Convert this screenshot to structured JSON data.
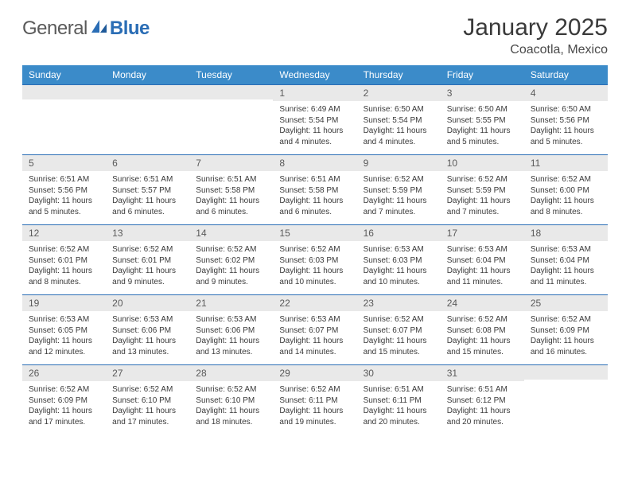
{
  "brand": {
    "part1": "General",
    "part2": "Blue"
  },
  "title": "January 2025",
  "location": "Coacotla, Mexico",
  "header_bg": "#3b8bc9",
  "border_color": "#2a6db5",
  "daynum_bg": "#e9e9e9",
  "weekdays": [
    "Sunday",
    "Monday",
    "Tuesday",
    "Wednesday",
    "Thursday",
    "Friday",
    "Saturday"
  ],
  "weeks": [
    [
      null,
      null,
      null,
      {
        "n": "1",
        "sr": "6:49 AM",
        "ss": "5:54 PM",
        "dl": "11 hours and 4 minutes."
      },
      {
        "n": "2",
        "sr": "6:50 AM",
        "ss": "5:54 PM",
        "dl": "11 hours and 4 minutes."
      },
      {
        "n": "3",
        "sr": "6:50 AM",
        "ss": "5:55 PM",
        "dl": "11 hours and 5 minutes."
      },
      {
        "n": "4",
        "sr": "6:50 AM",
        "ss": "5:56 PM",
        "dl": "11 hours and 5 minutes."
      }
    ],
    [
      {
        "n": "5",
        "sr": "6:51 AM",
        "ss": "5:56 PM",
        "dl": "11 hours and 5 minutes."
      },
      {
        "n": "6",
        "sr": "6:51 AM",
        "ss": "5:57 PM",
        "dl": "11 hours and 6 minutes."
      },
      {
        "n": "7",
        "sr": "6:51 AM",
        "ss": "5:58 PM",
        "dl": "11 hours and 6 minutes."
      },
      {
        "n": "8",
        "sr": "6:51 AM",
        "ss": "5:58 PM",
        "dl": "11 hours and 6 minutes."
      },
      {
        "n": "9",
        "sr": "6:52 AM",
        "ss": "5:59 PM",
        "dl": "11 hours and 7 minutes."
      },
      {
        "n": "10",
        "sr": "6:52 AM",
        "ss": "5:59 PM",
        "dl": "11 hours and 7 minutes."
      },
      {
        "n": "11",
        "sr": "6:52 AM",
        "ss": "6:00 PM",
        "dl": "11 hours and 8 minutes."
      }
    ],
    [
      {
        "n": "12",
        "sr": "6:52 AM",
        "ss": "6:01 PM",
        "dl": "11 hours and 8 minutes."
      },
      {
        "n": "13",
        "sr": "6:52 AM",
        "ss": "6:01 PM",
        "dl": "11 hours and 9 minutes."
      },
      {
        "n": "14",
        "sr": "6:52 AM",
        "ss": "6:02 PM",
        "dl": "11 hours and 9 minutes."
      },
      {
        "n": "15",
        "sr": "6:52 AM",
        "ss": "6:03 PM",
        "dl": "11 hours and 10 minutes."
      },
      {
        "n": "16",
        "sr": "6:53 AM",
        "ss": "6:03 PM",
        "dl": "11 hours and 10 minutes."
      },
      {
        "n": "17",
        "sr": "6:53 AM",
        "ss": "6:04 PM",
        "dl": "11 hours and 11 minutes."
      },
      {
        "n": "18",
        "sr": "6:53 AM",
        "ss": "6:04 PM",
        "dl": "11 hours and 11 minutes."
      }
    ],
    [
      {
        "n": "19",
        "sr": "6:53 AM",
        "ss": "6:05 PM",
        "dl": "11 hours and 12 minutes."
      },
      {
        "n": "20",
        "sr": "6:53 AM",
        "ss": "6:06 PM",
        "dl": "11 hours and 13 minutes."
      },
      {
        "n": "21",
        "sr": "6:53 AM",
        "ss": "6:06 PM",
        "dl": "11 hours and 13 minutes."
      },
      {
        "n": "22",
        "sr": "6:53 AM",
        "ss": "6:07 PM",
        "dl": "11 hours and 14 minutes."
      },
      {
        "n": "23",
        "sr": "6:52 AM",
        "ss": "6:07 PM",
        "dl": "11 hours and 15 minutes."
      },
      {
        "n": "24",
        "sr": "6:52 AM",
        "ss": "6:08 PM",
        "dl": "11 hours and 15 minutes."
      },
      {
        "n": "25",
        "sr": "6:52 AM",
        "ss": "6:09 PM",
        "dl": "11 hours and 16 minutes."
      }
    ],
    [
      {
        "n": "26",
        "sr": "6:52 AM",
        "ss": "6:09 PM",
        "dl": "11 hours and 17 minutes."
      },
      {
        "n": "27",
        "sr": "6:52 AM",
        "ss": "6:10 PM",
        "dl": "11 hours and 17 minutes."
      },
      {
        "n": "28",
        "sr": "6:52 AM",
        "ss": "6:10 PM",
        "dl": "11 hours and 18 minutes."
      },
      {
        "n": "29",
        "sr": "6:52 AM",
        "ss": "6:11 PM",
        "dl": "11 hours and 19 minutes."
      },
      {
        "n": "30",
        "sr": "6:51 AM",
        "ss": "6:11 PM",
        "dl": "11 hours and 20 minutes."
      },
      {
        "n": "31",
        "sr": "6:51 AM",
        "ss": "6:12 PM",
        "dl": "11 hours and 20 minutes."
      },
      null
    ]
  ],
  "labels": {
    "sunrise": "Sunrise:",
    "sunset": "Sunset:",
    "daylight": "Daylight:"
  }
}
